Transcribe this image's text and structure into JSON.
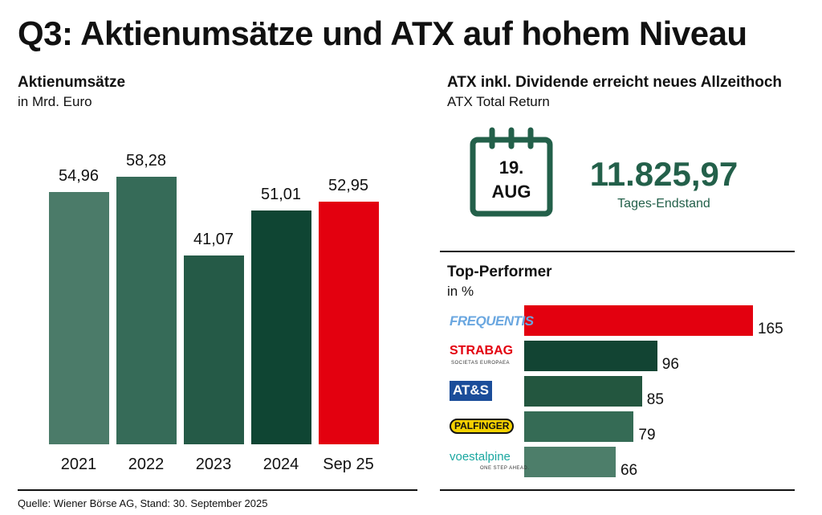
{
  "title": "Q3: Aktienumsätze und ATX auf hohem Niveau",
  "left": {
    "heading": "Aktienumsätze",
    "unit": "in Mrd. Euro"
  },
  "atx": {
    "heading": "ATX inkl. Dividende erreicht neues Allzeithoch",
    "sub": "ATX Total Return",
    "day": "19.",
    "month": "AUG",
    "value": "11.825,97",
    "value_label": "Tages-Endstand",
    "icon": "calendar-icon"
  },
  "top": {
    "heading": "Top-Performer",
    "unit": "in %"
  },
  "source": "Quelle: Wiener Börse AG, Stand: 30. September 2025",
  "chart_data": [
    {
      "type": "bar",
      "title": "Aktienumsätze",
      "ylabel": "in Mrd. Euro",
      "categories": [
        "2021",
        "2022",
        "2023",
        "2024",
        "Sep 25"
      ],
      "values": [
        54.96,
        58.28,
        41.07,
        51.01,
        52.95
      ],
      "labels": [
        "54,96",
        "58,28",
        "41,07",
        "51,01",
        "52,95"
      ],
      "colors": [
        "#4b7b69",
        "#366b58",
        "#255a47",
        "#0f4533",
        "#e3000f"
      ]
    },
    {
      "type": "bar",
      "orientation": "horizontal",
      "title": "Top-Performer",
      "ylabel": "in %",
      "categories": [
        "FREQUENTIS",
        "STRABAG",
        "AT&S",
        "PALFINGER",
        "voestalpine"
      ],
      "logo_sub": {
        "STRABAG": "SOCIETAS EUROPAEA",
        "voestalpine": "ONE STEP AHEAD."
      },
      "values": [
        165,
        96,
        85,
        79,
        66
      ],
      "colors": [
        "#e3000f",
        "#124433",
        "#23563f",
        "#356b55",
        "#4d7e6a"
      ]
    }
  ]
}
